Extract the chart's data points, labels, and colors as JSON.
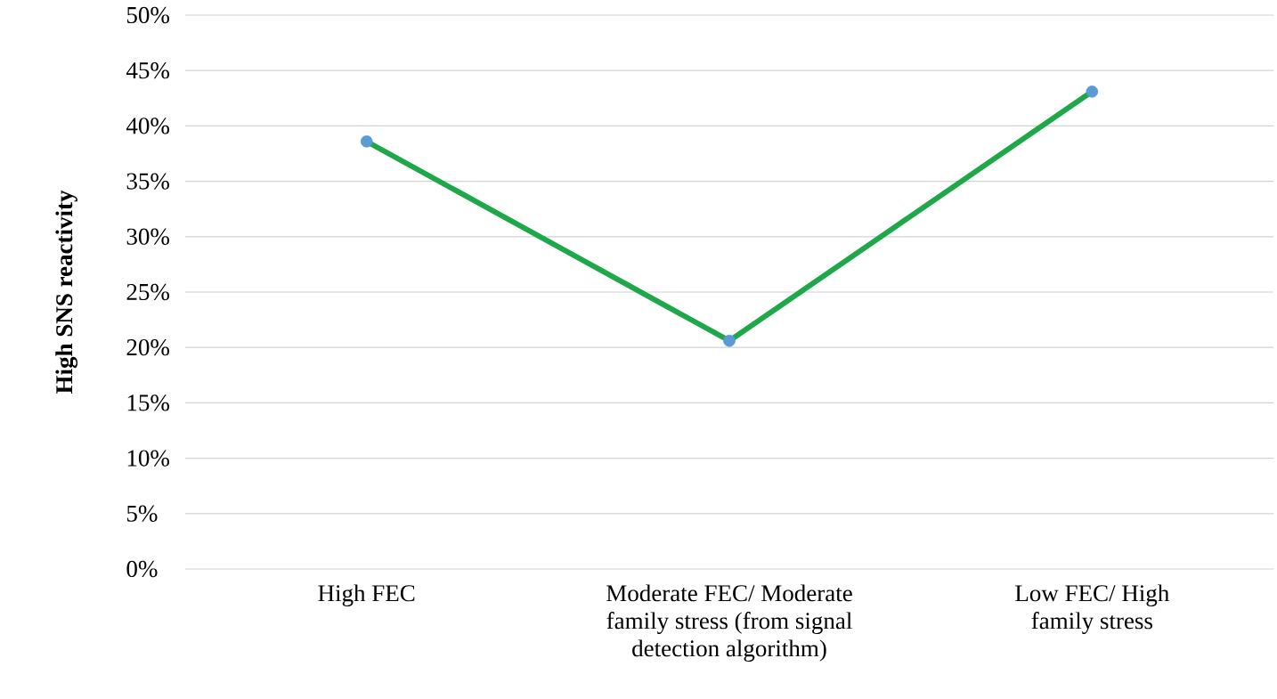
{
  "chart_data": {
    "type": "line",
    "ylabel": "High SNS reactivity",
    "categories": [
      "High FEC",
      "Moderate FEC/ Moderate family stress (from signal detection algorithm)",
      "Low FEC/ High family stress"
    ],
    "series": [
      {
        "color": "#1fa84a",
        "colors": [
          "#5b9bd5",
          "#5b9bd5",
          "#5b9bd5"
        ],
        "values": [
          38.6,
          20.6,
          43.1
        ]
      }
    ],
    "ylim": [
      0,
      50
    ],
    "yticks": [
      {
        "value": 0,
        "label": "0%"
      },
      {
        "value": 5,
        "label": "5%"
      },
      {
        "value": 10,
        "label": "10%"
      },
      {
        "value": 15,
        "label": "15%"
      },
      {
        "value": 20,
        "label": "20%"
      },
      {
        "value": 25,
        "label": "25%"
      },
      {
        "value": 30,
        "label": "30%"
      },
      {
        "value": 35,
        "label": "35%"
      },
      {
        "value": 40,
        "label": "40%"
      },
      {
        "value": 45,
        "label": "45%"
      },
      {
        "value": 50,
        "label": "50%"
      }
    ],
    "grid": "y",
    "marker": "circle",
    "line_style": "solid"
  }
}
